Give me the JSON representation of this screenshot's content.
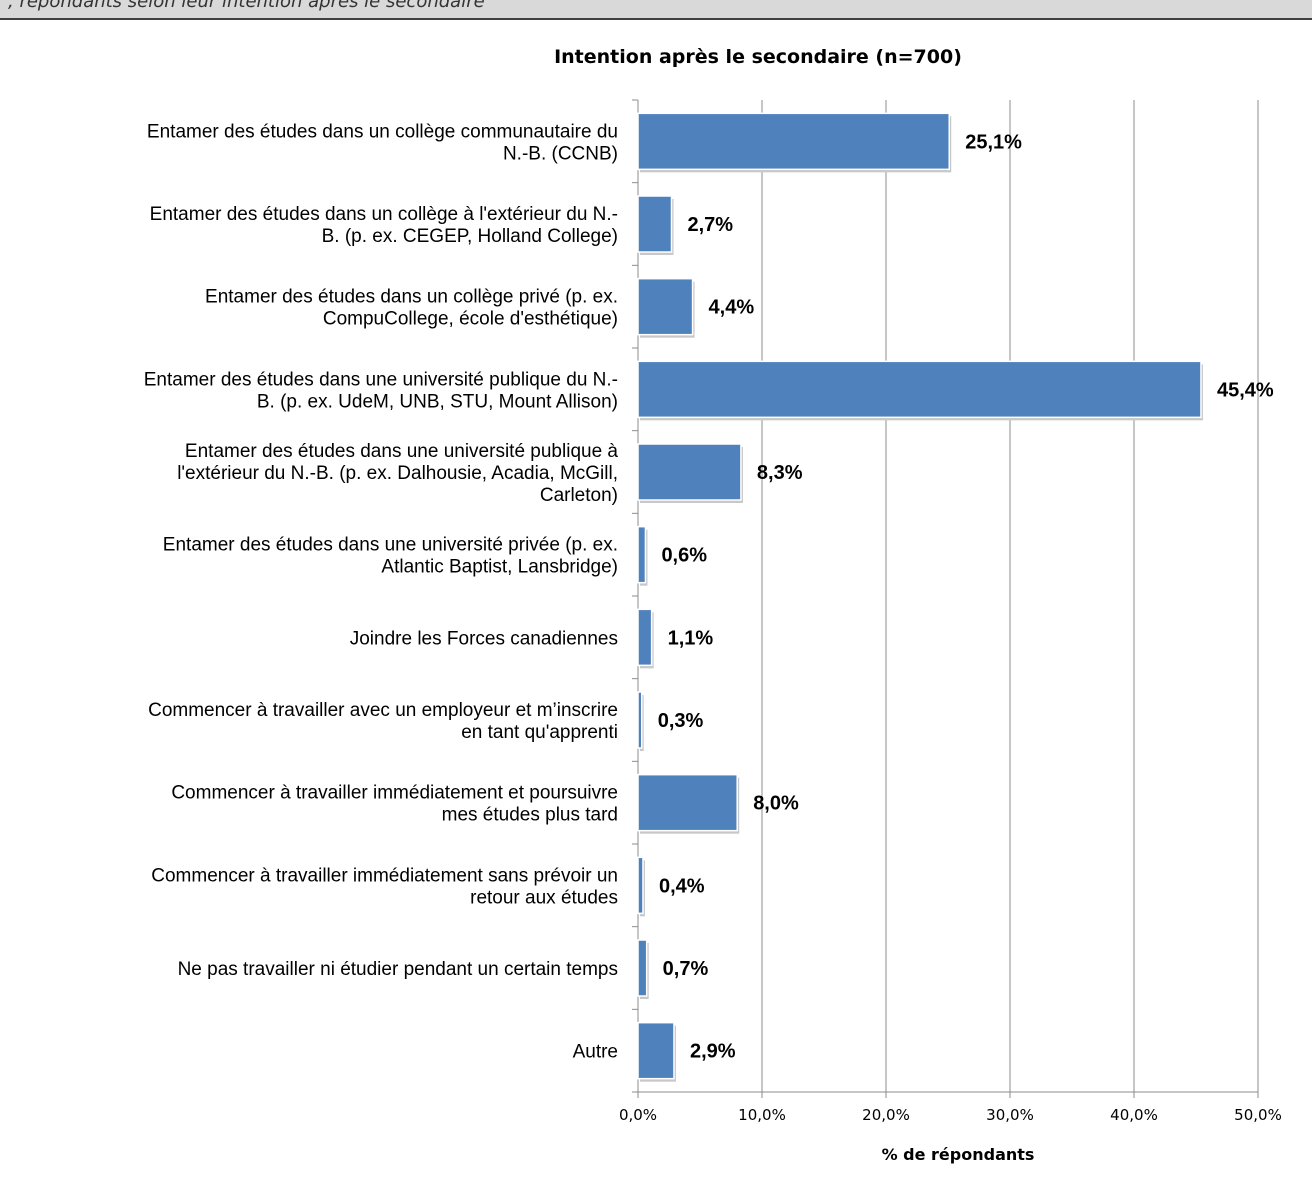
{
  "header_fragment": ", répondants selon leur intention après le secondaire",
  "chart_data": {
    "type": "bar",
    "orientation": "horizontal",
    "title": "Intention après le secondaire (n=700)",
    "xlabel": "% de répondants",
    "ylabel": "",
    "xlim": [
      0,
      50
    ],
    "x_ticks": [
      "0,0%",
      "10,0%",
      "20,0%",
      "30,0%",
      "40,0%",
      "50,0%"
    ],
    "grid": true,
    "legend": "none",
    "bar_color": "#4f81bd",
    "categories": [
      [
        "Entamer des études dans un collège communautaire du",
        "N.-B. (CCNB)"
      ],
      [
        "Entamer des études dans un collège à l'extérieur du N.-",
        "B. (p. ex. CEGEP, Holland College)"
      ],
      [
        "Entamer des études dans un collège privé (p. ex.",
        "CompuCollege, école d'esthétique)"
      ],
      [
        "Entamer des études dans une université publique du N.-",
        "B. (p. ex. UdeM, UNB, STU, Mount Allison)"
      ],
      [
        "Entamer des études dans une université publique à",
        "l'extérieur du N.-B. (p. ex. Dalhousie, Acadia, McGill,",
        "Carleton)"
      ],
      [
        "Entamer des études dans une université privée (p. ex.",
        "Atlantic Baptist, Lansbridge)"
      ],
      [
        "Joindre les Forces canadiennes"
      ],
      [
        "Commencer à travailler avec un employeur et m’inscrire",
        "en tant qu'apprenti"
      ],
      [
        "Commencer à travailler immédiatement et poursuivre",
        "mes études plus tard"
      ],
      [
        "Commencer à travailler immédiatement sans prévoir un",
        "retour aux études"
      ],
      [
        "Ne pas travailler ni étudier pendant un certain temps"
      ],
      [
        "Autre"
      ]
    ],
    "values": [
      25.1,
      2.7,
      4.4,
      45.4,
      8.3,
      0.6,
      1.1,
      0.3,
      8.0,
      0.4,
      0.7,
      2.9
    ],
    "data_labels": [
      "25,1%",
      "2,7%",
      "4,4%",
      "45,4%",
      "8,3%",
      "0,6%",
      "1,1%",
      "0,3%",
      "8,0%",
      "0,4%",
      "0,7%",
      "2,9%"
    ]
  }
}
